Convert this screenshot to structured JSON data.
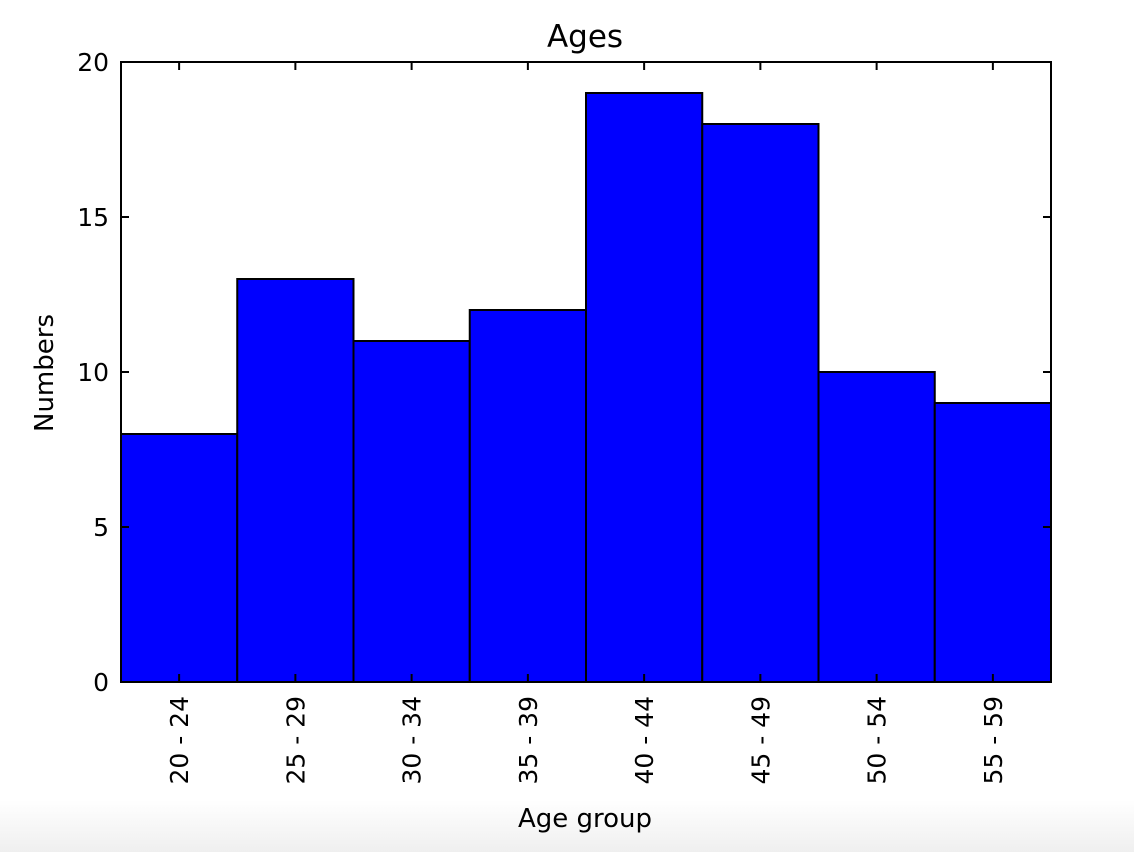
{
  "chart_data": {
    "type": "bar",
    "title": "Ages",
    "xlabel": "Age group",
    "ylabel": "Numbers",
    "categories": [
      "20 - 24",
      "25 - 29",
      "30 - 34",
      "35 - 39",
      "40 - 44",
      "45 - 49",
      "50 - 54",
      "55 - 59"
    ],
    "values": [
      8,
      13,
      11,
      12,
      19,
      18,
      10,
      9
    ],
    "ylim": [
      0,
      20
    ],
    "yticks": [
      0,
      5,
      10,
      15,
      20
    ],
    "bar_color": "#0000ff",
    "edge_color": "#000000",
    "grid": false,
    "legend": "none"
  }
}
